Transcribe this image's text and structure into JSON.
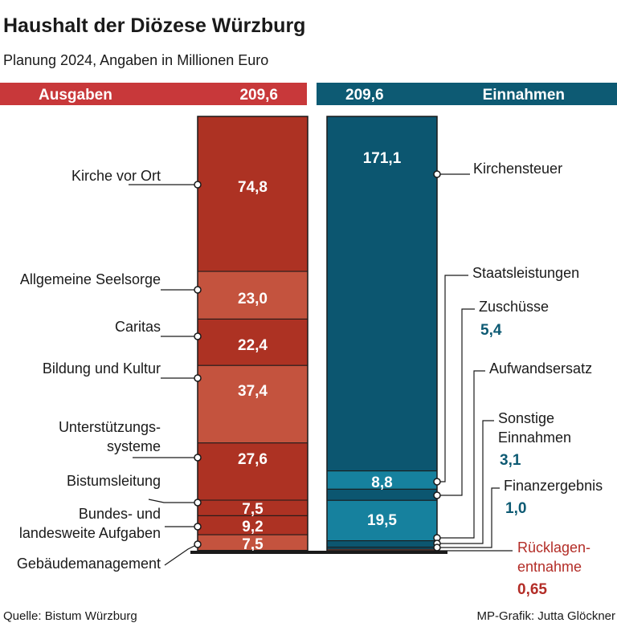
{
  "title": "Haushalt der Diözese Würzburg",
  "subtitle": "Planung 2024, Angaben in Millionen Euro",
  "source": "Quelle: Bistum Würzburg",
  "credit": "MP-Grafik: Jutta Glöckner",
  "colors": {
    "expense_header": "#c8383a",
    "expense_dark": "#ad3223",
    "expense_light": "#c4533e",
    "income_header": "#0d5a73",
    "income_dark": "#0c5670",
    "income_light": "#16819e",
    "reserve": "#b32d27"
  },
  "chart_data": {
    "type": "stacked-bar",
    "unit": "Millionen Euro",
    "bars": [
      {
        "name": "Ausgaben",
        "total": 209.6,
        "total_label": "209,6",
        "segments": [
          {
            "label": "Kirche vor Ort",
            "value": 74.8,
            "value_label": "74,8"
          },
          {
            "label": "Allgemeine Seelsorge",
            "value": 23.0,
            "value_label": "23,0"
          },
          {
            "label": "Caritas",
            "value": 22.4,
            "value_label": "22,4"
          },
          {
            "label": "Bildung und Kultur",
            "value": 37.4,
            "value_label": "37,4"
          },
          {
            "label": "Unterstützungs-\nsysteme",
            "value": 27.6,
            "value_label": "27,6"
          },
          {
            "label": "Bistumsleitung",
            "value": 7.5,
            "value_label": "7,5"
          },
          {
            "label": "Bundes- und\nlandesweite Aufgaben",
            "value": 9.2,
            "value_label": "9,2"
          },
          {
            "label": "Gebäudemanagement",
            "value": 7.5,
            "value_label": "7,5"
          }
        ]
      },
      {
        "name": "Einnahmen",
        "total": 209.6,
        "total_label": "209,6",
        "segments": [
          {
            "label": "Kirchensteuer",
            "value": 171.1,
            "value_label": "171,1"
          },
          {
            "label": "Staatsleistungen",
            "value": 8.8,
            "value_label": "8,8"
          },
          {
            "label": "Zuschüsse",
            "value": 5.4,
            "value_label": "5,4"
          },
          {
            "label": "Aufwandsersatz",
            "value": 19.5,
            "value_label": "19,5"
          },
          {
            "label": "Sonstige\nEinnahmen",
            "value": 3.1,
            "value_label": "3,1"
          },
          {
            "label": "Finanzergebnis",
            "value": 1.0,
            "value_label": "1,0"
          },
          {
            "label": "Rücklagen-\nentnahme",
            "value": 0.65,
            "value_label": "0,65"
          }
        ]
      }
    ]
  }
}
